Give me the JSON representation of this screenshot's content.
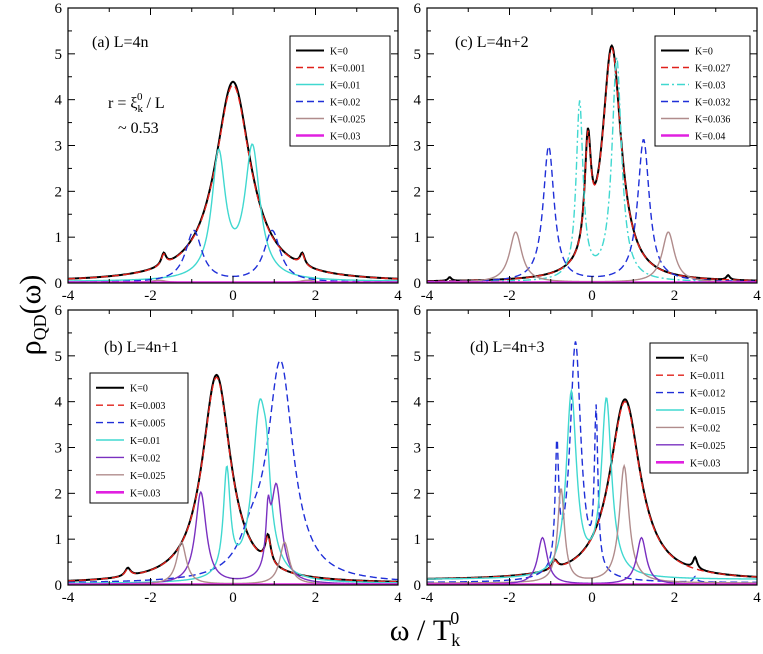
{
  "figure": {
    "ylabel_main": "ρ",
    "ylabel_sub": "QD",
    "ylabel_tail": "(ω)",
    "xlabel_main": "ω / T",
    "xlabel_sub": "k",
    "xlabel_sup": "0"
  },
  "chart_data": [
    {
      "id": "a",
      "type": "line",
      "title": "(a) L=4n",
      "annotation_1": "r = ξ",
      "annotation_1_sub": "k",
      "annotation_1_sup": "0",
      "annotation_1_tail": " / L",
      "annotation_2": "~ 0.53",
      "xlim": [
        -4,
        4
      ],
      "ylim": [
        0,
        6
      ],
      "xticks": [
        -4,
        -2,
        0,
        2,
        4
      ],
      "yticks": [
        0,
        1,
        2,
        3,
        4,
        5,
        6
      ],
      "xtick_labels": [
        "-4",
        "-2",
        "0",
        "2",
        "4"
      ],
      "ytick_labels": [
        "0",
        "1",
        "2",
        "3",
        "4",
        "5",
        "6"
      ],
      "legend": "top-right",
      "series": [
        {
          "name": "K=0",
          "color": "#000000",
          "style": "solid",
          "peaks": [
            [
              0.0,
              4.37,
              0.52
            ],
            [
              -1.68,
              0.26,
              0.07
            ],
            [
              1.68,
              0.26,
              0.07
            ]
          ],
          "base": 0.02
        },
        {
          "name": "K=0.001",
          "color": "#e0201a",
          "style": "dashed",
          "peaks": [
            [
              0.0,
              4.3,
              0.52
            ],
            [
              -1.68,
              0.24,
              0.07
            ],
            [
              1.68,
              0.24,
              0.07
            ]
          ],
          "base": 0.02
        },
        {
          "name": "K=0.01",
          "color": "#40d8d0",
          "style": "solid",
          "peaks": [
            [
              -0.35,
              2.7,
              0.2
            ],
            [
              0.47,
              2.85,
              0.22
            ]
          ],
          "base": 0.03
        },
        {
          "name": "K=0.02",
          "color": "#1f2fd8",
          "style": "dashed",
          "peaks": [
            [
              -0.95,
              1.12,
              0.24
            ],
            [
              0.95,
              1.12,
              0.24
            ]
          ],
          "base": 0.01
        },
        {
          "name": "K=0.025",
          "color": "#b08c8c",
          "style": "solid",
          "peaks": [
            [
              -1.8,
              0.05,
              0.2
            ],
            [
              1.8,
              0.05,
              0.2
            ]
          ],
          "base": 0.01
        },
        {
          "name": "K=0.03",
          "color": "#e020e0",
          "style": "thick",
          "peaks": [],
          "base": 0.01
        }
      ]
    },
    {
      "id": "c",
      "type": "line",
      "title": "(c) L=4n+2",
      "xlim": [
        -4,
        4
      ],
      "ylim": [
        0,
        6
      ],
      "xticks": [
        -4,
        -2,
        0,
        2,
        4
      ],
      "yticks": [
        0,
        1,
        2,
        3,
        4,
        5,
        6
      ],
      "xtick_labels": [
        "-4",
        "-2",
        "0",
        "2",
        "4"
      ],
      "ytick_labels": [
        "0",
        "1",
        "2",
        "3",
        "4",
        "5",
        "6"
      ],
      "legend": "top-right",
      "series": [
        {
          "name": "K=0",
          "color": "#000000",
          "style": "solid",
          "peaks": [
            [
              0.48,
              5.1,
              0.28
            ],
            [
              -0.1,
              2.4,
              0.09
            ],
            [
              -3.45,
              0.08,
              0.05
            ],
            [
              3.3,
              0.1,
              0.05
            ]
          ],
          "base": 0.02
        },
        {
          "name": "K=0.027",
          "color": "#e0201a",
          "style": "dashed",
          "peaks": [
            [
              0.48,
              5.05,
              0.28
            ],
            [
              -0.1,
              2.35,
              0.09
            ]
          ],
          "base": 0.02
        },
        {
          "name": "K=0.03",
          "color": "#40d8d0",
          "style": "dashdot",
          "peaks": [
            [
              -0.3,
              3.85,
              0.1
            ],
            [
              0.6,
              4.85,
              0.14
            ]
          ],
          "base": 0.02
        },
        {
          "name": "K=0.032",
          "color": "#1f2fd8",
          "style": "dashed",
          "peaks": [
            [
              -1.05,
              2.95,
              0.16
            ],
            [
              1.25,
              3.1,
              0.17
            ]
          ],
          "base": 0.02
        },
        {
          "name": "K=0.036",
          "color": "#b08c8c",
          "style": "solid",
          "peaks": [
            [
              -1.85,
              1.1,
              0.18
            ],
            [
              1.85,
              1.1,
              0.18
            ]
          ],
          "base": 0.01
        },
        {
          "name": "K=0.04",
          "color": "#e020e0",
          "style": "thick",
          "peaks": [],
          "base": 0.01
        }
      ]
    },
    {
      "id": "b",
      "type": "line",
      "title": "(b)  L=4n+1",
      "xlim": [
        -4,
        4
      ],
      "ylim": [
        0,
        6
      ],
      "xticks": [
        -4,
        -2,
        0,
        2,
        4
      ],
      "yticks": [
        0,
        1,
        2,
        3,
        4,
        5,
        6
      ],
      "xtick_labels": [
        "-4",
        "-2",
        "0",
        "2",
        "4"
      ],
      "ytick_labels": [
        "0",
        "1",
        "2",
        "3",
        "4",
        "5",
        "6"
      ],
      "legend": "left",
      "series": [
        {
          "name": "K=0",
          "color": "#000000",
          "style": "solid",
          "peaks": [
            [
              -0.4,
              4.55,
              0.42
            ],
            [
              -2.55,
              0.18,
              0.08
            ],
            [
              0.85,
              0.62,
              0.08
            ]
          ],
          "base": 0.03
        },
        {
          "name": "K=0.003",
          "color": "#e0201a",
          "style": "dashed",
          "peaks": [
            [
              -0.4,
              4.5,
              0.42
            ],
            [
              -2.55,
              0.16,
              0.08
            ],
            [
              0.85,
              0.6,
              0.08
            ]
          ],
          "base": 0.03
        },
        {
          "name": "K=0.005",
          "color": "#1f2fd8",
          "style": "dashed",
          "peaks": [
            [
              1.15,
              4.75,
              0.38
            ],
            [
              0.45,
              0.6,
              0.35
            ]
          ],
          "base": 0.03
        },
        {
          "name": "K=0.01",
          "color": "#40d8d0",
          "style": "solid",
          "peaks": [
            [
              0.65,
              3.72,
              0.22
            ],
            [
              -0.15,
              2.3,
              0.1
            ],
            [
              0.82,
              1.0,
              0.1
            ]
          ],
          "base": 0.03
        },
        {
          "name": "K=0.02",
          "color": "#7a30c0",
          "style": "solid",
          "peaks": [
            [
              -0.78,
              2.0,
              0.16
            ],
            [
              1.05,
              2.1,
              0.16
            ],
            [
              0.85,
              1.1,
              0.06
            ]
          ],
          "base": 0.01
        },
        {
          "name": "K=0.025",
          "color": "#b08c8c",
          "style": "solid",
          "peaks": [
            [
              -1.25,
              0.92,
              0.14
            ],
            [
              1.25,
              0.92,
              0.14
            ]
          ],
          "base": 0.01
        },
        {
          "name": "K=0.03",
          "color": "#e020e0",
          "style": "thick",
          "peaks": [],
          "base": 0.01
        }
      ]
    },
    {
      "id": "d",
      "type": "line",
      "title": "(d) L=4n+3",
      "xlim": [
        -4,
        4
      ],
      "ylim": [
        0,
        6
      ],
      "xticks": [
        -4,
        -2,
        0,
        2,
        4
      ],
      "yticks": [
        0,
        1,
        2,
        3,
        4,
        5,
        6
      ],
      "xtick_labels": [
        "-4",
        "-2",
        "0",
        "2",
        "4"
      ],
      "ytick_labels": [
        "0",
        "1",
        "2",
        "3",
        "4",
        "5",
        "6"
      ],
      "legend": "top-right",
      "series": [
        {
          "name": "K=0",
          "color": "#000000",
          "style": "solid",
          "peaks": [
            [
              0.8,
              3.95,
              0.45
            ],
            [
              -0.9,
              0.2,
              0.08
            ],
            [
              2.5,
              0.25,
              0.06
            ]
          ],
          "base": 0.1
        },
        {
          "name": "K=0.011",
          "color": "#e0201a",
          "style": "dashed",
          "peaks": [
            [
              0.8,
              3.9,
              0.45
            ],
            [
              -0.9,
              0.18,
              0.08
            ]
          ],
          "base": 0.1
        },
        {
          "name": "K=0.012",
          "color": "#1f2fd8",
          "style": "dashed",
          "peaks": [
            [
              -0.4,
              5.2,
              0.16
            ],
            [
              -0.85,
              2.6,
              0.05
            ],
            [
              0.1,
              3.4,
              0.05
            ],
            [
              2.5,
              0.12,
              0.05
            ]
          ],
          "base": 0.05
        },
        {
          "name": "K=0.015",
          "color": "#40d8d0",
          "style": "solid",
          "peaks": [
            [
              -0.5,
              4.0,
              0.15
            ],
            [
              0.35,
              3.85,
              0.15
            ]
          ],
          "base": 0.12
        },
        {
          "name": "K=0.02",
          "color": "#b08c8c",
          "style": "solid",
          "peaks": [
            [
              -0.75,
              2.05,
              0.1
            ],
            [
              0.78,
              2.55,
              0.14
            ]
          ],
          "base": 0.04
        },
        {
          "name": "K=0.025",
          "color": "#7a30c0",
          "style": "solid",
          "peaks": [
            [
              -1.2,
              1.02,
              0.14
            ],
            [
              1.2,
              1.02,
              0.14
            ]
          ],
          "base": 0.01
        },
        {
          "name": "K=0.03",
          "color": "#e020e0",
          "style": "thick",
          "peaks": [],
          "base": 0.01
        }
      ]
    }
  ]
}
